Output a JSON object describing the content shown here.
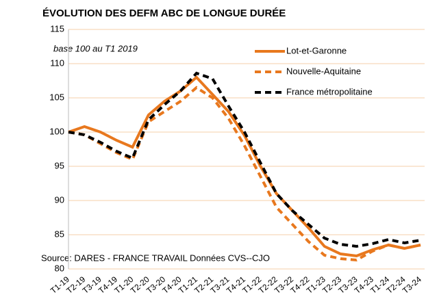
{
  "chart_data": {
    "type": "line",
    "title": "ÉVOLUTION DES DEFM ABC DE LONGUE DURÉE",
    "subtitle": "base 100 au T1 2019",
    "source": "Source: DARES - FRANCE TRAVAIL  Données CVS--CJO",
    "categories": [
      "T1-19",
      "T2-19",
      "T3-19",
      "T4-19",
      "T1-20",
      "T2-20",
      "T3-20",
      "T4-20",
      "T1-21",
      "T2-21",
      "T3-21",
      "T4-21",
      "T1-22",
      "T2-22",
      "T3-22",
      "T4-22",
      "T1-23",
      "T2-23",
      "T3-23",
      "T4-23",
      "T1-24",
      "T2-24",
      "T3-24"
    ],
    "series": [
      {
        "name": "Lot-et-Garonne",
        "color": "#e8781e",
        "dash": "solid",
        "values": [
          100,
          100.8,
          100,
          98.8,
          97.8,
          102.5,
          104.5,
          106,
          108,
          105.5,
          103,
          99.5,
          95,
          91,
          88.5,
          86,
          83.3,
          82.2,
          81.9,
          82.8,
          83.5,
          83,
          83.5
        ]
      },
      {
        "name": "Nouvelle-Aquitaine",
        "color": "#e8781e",
        "dash": "dashed",
        "values": [
          100,
          99.6,
          98.3,
          97,
          96,
          101.5,
          103,
          104.5,
          106.5,
          105,
          102,
          98,
          93.5,
          89,
          86.5,
          84,
          82,
          81.5,
          81.3,
          82.6,
          83.5,
          83,
          83.5
        ]
      },
      {
        "name": "France métropolitaine",
        "color": "#000000",
        "dash": "dashed",
        "values": [
          100,
          99.6,
          98.5,
          97.2,
          96.2,
          101.8,
          104,
          106,
          108.6,
          107.8,
          103.8,
          100,
          95.5,
          91,
          88.5,
          86.5,
          84.5,
          83.6,
          83.3,
          83.7,
          84.3,
          83.8,
          84.2
        ]
      }
    ],
    "ylim": [
      80,
      115
    ],
    "yticks": [
      80,
      85,
      90,
      95,
      100,
      105,
      110,
      115
    ],
    "grid": true,
    "legend": "upper right"
  }
}
